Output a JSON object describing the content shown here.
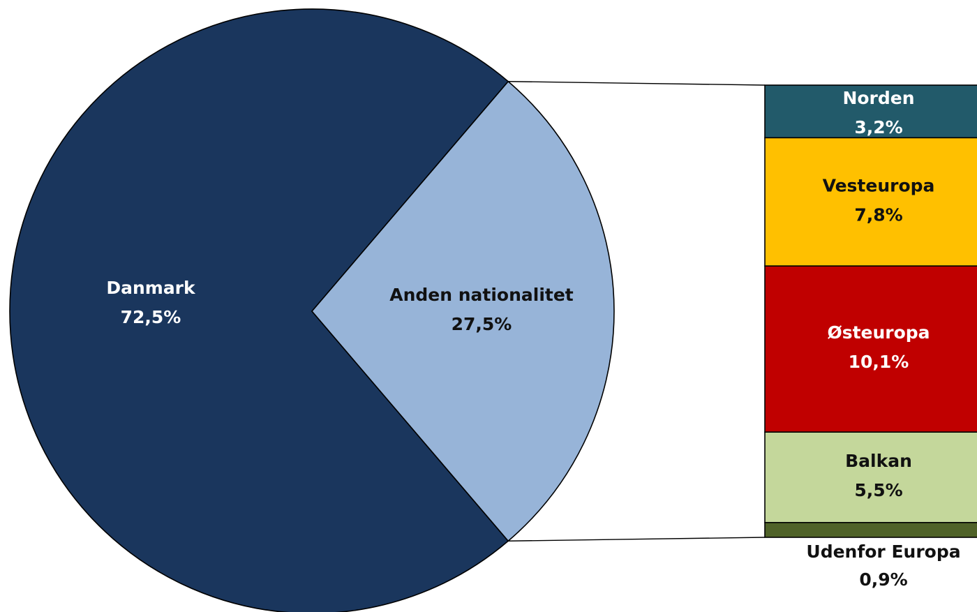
{
  "chart_data": {
    "type": "pie",
    "title": "",
    "pie": {
      "slices": [
        {
          "label": "Danmark",
          "value": 72.5,
          "value_label": "72,5%",
          "color": "#1a365d"
        },
        {
          "label": "Anden nationalitet",
          "value": 27.5,
          "value_label": "27,5%",
          "color": "#97b4d8"
        }
      ]
    },
    "breakdown": {
      "of": "Anden nationalitet",
      "type": "stacked-bar",
      "segments": [
        {
          "label": "Norden",
          "value": 3.2,
          "value_label": "3,2%",
          "color": "#225a6a"
        },
        {
          "label": "Vesteuropa",
          "value": 7.8,
          "value_label": "7,8%",
          "color": "#ffc000"
        },
        {
          "label": "Østeuropa",
          "value": 10.1,
          "value_label": "10,1%",
          "color": "#c00000"
        },
        {
          "label": "Balkan",
          "value": 5.5,
          "value_label": "5,5%",
          "color": "#c4d79b"
        },
        {
          "label": "Udenfor Europa",
          "value": 0.9,
          "value_label": "0,9%",
          "color": "#4f6228"
        }
      ]
    }
  }
}
